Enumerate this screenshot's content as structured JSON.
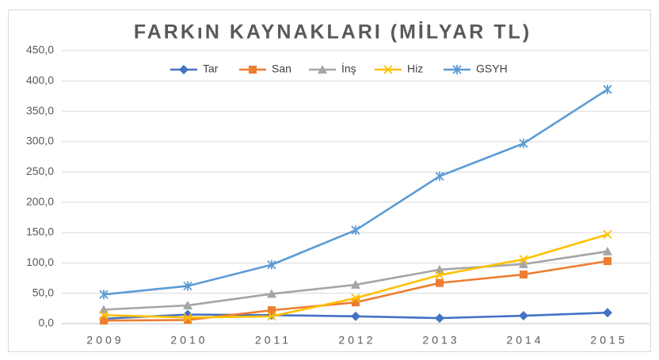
{
  "chart_data": {
    "type": "line",
    "title": "FARKıN KAYNAKLARI (MİLYAR TL)",
    "categories": [
      "2009",
      "2010",
      "2011",
      "2012",
      "2013",
      "2014",
      "2015"
    ],
    "series": [
      {
        "name": "Tar",
        "color": "#4472c4",
        "marker": "diamond",
        "values": [
          8,
          15,
          14,
          12,
          9,
          13,
          18
        ]
      },
      {
        "name": "San",
        "color": "#ed7d31",
        "marker": "square",
        "values": [
          5,
          6,
          22,
          35,
          67,
          81,
          103
        ]
      },
      {
        "name": "İnş",
        "color": "#a5a5a5",
        "marker": "triangle",
        "values": [
          23,
          30,
          49,
          64,
          89,
          98,
          119
        ]
      },
      {
        "name": "Hiz",
        "color": "#ffc000",
        "marker": "x",
        "values": [
          14,
          10,
          12,
          42,
          80,
          106,
          147
        ]
      },
      {
        "name": "GSYH",
        "color": "#5b9bd5",
        "marker": "asterisk",
        "values": [
          48,
          62,
          97,
          154,
          243,
          297,
          386
        ]
      }
    ],
    "ylim": [
      0,
      450
    ],
    "yticks": [
      {
        "value": 0,
        "label": "0,0"
      },
      {
        "value": 50,
        "label": "50,0"
      },
      {
        "value": 100,
        "label": "100,0"
      },
      {
        "value": 150,
        "label": "150,0"
      },
      {
        "value": 200,
        "label": "200,0"
      },
      {
        "value": 250,
        "label": "250,0"
      },
      {
        "value": 300,
        "label": "300,0"
      },
      {
        "value": 350,
        "label": "350,0"
      },
      {
        "value": 400,
        "label": "400,0"
      },
      {
        "value": 450,
        "label": "450,0"
      }
    ],
    "grid": true,
    "legend": "top"
  }
}
